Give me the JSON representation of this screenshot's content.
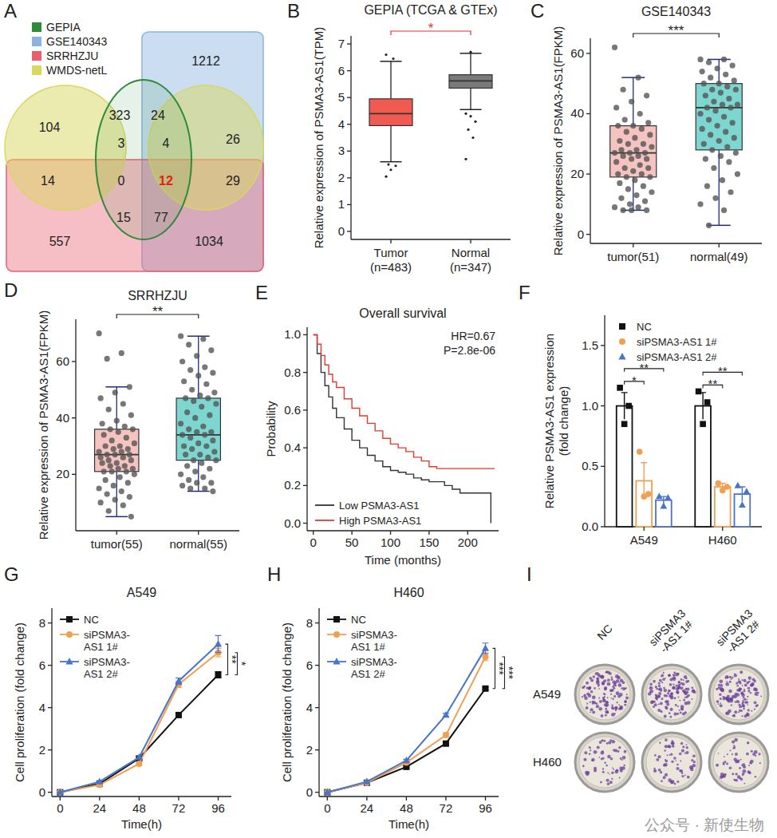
{
  "chart_data": [
    {
      "type": "box",
      "panel": "B",
      "title": "GEPIA (TCGA & GTEx)",
      "ylabel": "Relative expression of PSMA3-AS1(TPM)",
      "categories": [
        "Tumor (n=483)",
        "Normal (n=347)"
      ],
      "colors": [
        "#f15a50",
        "#7a7a7a"
      ],
      "boxes": [
        {
          "min": 2.6,
          "q1": 3.95,
          "median": 4.4,
          "q3": 4.95,
          "max": 6.35
        },
        {
          "min": 4.55,
          "q1": 5.35,
          "median": 5.62,
          "q3": 5.85,
          "max": 6.65
        }
      ],
      "outliers": [
        [
          2.05,
          2.3,
          2.45,
          2.5,
          6.45,
          6.6
        ],
        [
          4.4,
          4.3,
          4.1,
          3.8,
          3.5,
          2.7,
          6.7
        ]
      ],
      "ylim": [
        -0.3,
        7.3
      ],
      "yticks": [
        0,
        1,
        2,
        3,
        4,
        5,
        6,
        7
      ],
      "significance": {
        "text": "*",
        "color": "#e8302a"
      }
    },
    {
      "type": "box",
      "panel": "C",
      "title": "GSE140343",
      "ylabel": "Relative expression of PSMA3-AS1(FPKM)",
      "categories": [
        "tumor(51)",
        "normal(49)"
      ],
      "colors": [
        "#f6c4c0",
        "#7dd6d0"
      ],
      "boxes": [
        {
          "min": 8,
          "q1": 19,
          "median": 27,
          "q3": 36,
          "max": 52
        },
        {
          "min": 3,
          "q1": 28,
          "median": 42,
          "q3": 50,
          "max": 58
        }
      ],
      "points": [
        [
          62,
          52,
          48,
          46,
          44,
          42,
          40,
          38,
          37,
          36,
          36,
          35,
          34,
          33,
          32,
          31,
          30,
          30,
          29,
          28,
          28,
          27,
          27,
          27,
          26,
          26,
          25,
          25,
          24,
          23,
          22,
          22,
          21,
          20,
          20,
          19,
          19,
          18,
          17,
          16,
          15,
          14,
          13,
          12,
          11,
          10,
          9,
          9,
          8,
          8,
          8
        ],
        [
          58,
          58,
          57,
          56,
          55,
          54,
          53,
          52,
          51,
          50,
          50,
          49,
          48,
          48,
          47,
          46,
          45,
          44,
          43,
          43,
          42,
          42,
          41,
          40,
          39,
          38,
          37,
          36,
          35,
          34,
          33,
          32,
          31,
          30,
          29,
          28,
          27,
          26,
          25,
          24,
          22,
          20,
          18,
          16,
          14,
          12,
          10,
          8,
          3
        ]
      ],
      "ylim": [
        -3,
        65
      ],
      "yticks": [
        0,
        20,
        40,
        60
      ],
      "significance": {
        "text": "***",
        "color": "#222222"
      }
    },
    {
      "type": "box",
      "panel": "D",
      "title": "SRRHZJU",
      "ylabel": "Relative expression of PSMA3-AS1(FPKM)",
      "categories": [
        "tumor(55)",
        "normal(55)"
      ],
      "colors": [
        "#f6c4c0",
        "#7dd6d0"
      ],
      "boxes": [
        {
          "min": 5,
          "q1": 21,
          "median": 27,
          "q3": 36,
          "max": 51
        },
        {
          "min": 14,
          "q1": 25,
          "median": 34,
          "q3": 47,
          "max": 69
        }
      ],
      "points": [
        [
          70,
          63,
          61,
          51,
          49,
          47,
          45,
          43,
          41,
          39,
          38,
          37,
          36,
          36,
          35,
          34,
          33,
          32,
          31,
          30,
          30,
          29,
          29,
          28,
          28,
          27,
          27,
          27,
          26,
          26,
          25,
          25,
          24,
          24,
          23,
          23,
          22,
          22,
          21,
          21,
          21,
          20,
          19,
          18,
          17,
          16,
          15,
          14,
          13,
          12,
          11,
          10,
          9,
          7,
          5
        ],
        [
          69,
          68,
          66,
          64,
          62,
          60,
          58,
          57,
          56,
          55,
          53,
          52,
          50,
          49,
          48,
          47,
          47,
          46,
          45,
          44,
          42,
          41,
          40,
          38,
          37,
          36,
          35,
          35,
          34,
          34,
          33,
          32,
          31,
          30,
          30,
          29,
          28,
          27,
          27,
          26,
          25,
          25,
          24,
          23,
          22,
          21,
          20,
          19,
          18,
          17,
          17,
          16,
          15,
          15,
          14
        ]
      ],
      "ylim": [
        0,
        75
      ],
      "yticks": [
        20,
        40,
        60
      ],
      "significance": {
        "text": "**",
        "color": "#222222"
      }
    },
    {
      "type": "line",
      "panel": "E",
      "title": "Overall survival",
      "xlabel": "Time (months)",
      "ylabel": "Probability",
      "line_style": "step",
      "legend": "lower left",
      "xlim": [
        -8,
        240
      ],
      "ylim": [
        -0.04,
        1.04
      ],
      "xticks": [
        0,
        50,
        100,
        150,
        200
      ],
      "yticks": [
        {
          "value": 0,
          "label": "0.0"
        },
        {
          "value": 0.2,
          "label": "0.2"
        },
        {
          "value": 0.4,
          "label": "0.4"
        },
        {
          "value": 0.6,
          "label": "0.6"
        },
        {
          "value": 0.8,
          "label": "0.8"
        },
        {
          "value": 1,
          "label": "1.0"
        }
      ],
      "annotations": [
        "HR=0.67",
        "P=2.8e-06"
      ],
      "series": [
        {
          "name": "Low PSMA3-AS1",
          "color": "#333333",
          "x": [
            0,
            5,
            10,
            15,
            20,
            25,
            30,
            40,
            50,
            60,
            70,
            80,
            90,
            100,
            110,
            120,
            130,
            140,
            150,
            160,
            170,
            180,
            190,
            200,
            210,
            220,
            230
          ],
          "values": [
            1.0,
            0.9,
            0.8,
            0.73,
            0.67,
            0.61,
            0.56,
            0.5,
            0.44,
            0.4,
            0.36,
            0.33,
            0.3,
            0.28,
            0.27,
            0.26,
            0.24,
            0.23,
            0.22,
            0.22,
            0.2,
            0.18,
            0.16,
            0.16,
            0.16,
            0.16,
            0.0
          ]
        },
        {
          "name": "High PSMA3-AS1",
          "color": "#e8392f",
          "x": [
            0,
            5,
            10,
            15,
            20,
            25,
            30,
            40,
            50,
            60,
            70,
            80,
            90,
            100,
            110,
            120,
            130,
            140,
            150,
            160,
            170,
            180,
            190,
            200,
            210,
            220,
            235
          ],
          "values": [
            1.0,
            0.95,
            0.89,
            0.84,
            0.79,
            0.75,
            0.72,
            0.66,
            0.61,
            0.57,
            0.53,
            0.49,
            0.45,
            0.42,
            0.4,
            0.38,
            0.35,
            0.33,
            0.3,
            0.29,
            0.29,
            0.29,
            0.29,
            0.29,
            0.29,
            0.29,
            0.29
          ]
        }
      ]
    },
    {
      "type": "bar",
      "panel": "F",
      "ylabel": "Relative PSMA3-AS1 expression (fold change)",
      "categories": [
        "A549",
        "H460"
      ],
      "legend": "upper left",
      "ylim": [
        0,
        1.75
      ],
      "yticks": [
        {
          "value": 0,
          "label": "0.0"
        },
        {
          "value": 0.5,
          "label": "0.5"
        },
        {
          "value": 1,
          "label": "1.0"
        },
        {
          "value": 1.5,
          "label": "1.5"
        }
      ],
      "significance": [
        [
          "*",
          "**"
        ],
        [
          "**",
          "**"
        ]
      ],
      "series": [
        {
          "name": "NC",
          "color": "#111111",
          "marker": "square",
          "values": [
            1.0,
            1.0
          ],
          "errors": [
            0.11,
            0.11
          ],
          "points": [
            [
              1.15,
              0.85,
              1.0
            ],
            [
              1.12,
              0.85,
              1.03
            ]
          ]
        },
        {
          "name": "siPSMA3-AS1 1#",
          "color": "#f0a052",
          "marker": "circle",
          "values": [
            0.38,
            0.33
          ],
          "errors": [
            0.15,
            0.03
          ],
          "points": [
            [
              0.62,
              0.25,
              0.27
            ],
            [
              0.36,
              0.3,
              0.33
            ]
          ]
        },
        {
          "name": "siPSMA3-AS1 2#",
          "color": "#4a74c8",
          "marker": "triangle",
          "values": [
            0.22,
            0.27
          ],
          "errors": [
            0.03,
            0.06
          ],
          "points": [
            [
              0.25,
              0.17,
              0.24
            ],
            [
              0.34,
              0.18,
              0.29
            ]
          ]
        }
      ]
    },
    {
      "type": "line",
      "panel": "G",
      "title": "A549",
      "xlabel": "Time(h)",
      "ylabel": "Cell proliferation (fold change)",
      "legend": "upper left",
      "x": [
        0,
        24,
        48,
        72,
        96
      ],
      "xlim": [
        -5,
        104
      ],
      "ylim": [
        -0.2,
        8.7
      ],
      "xticks": [
        0,
        24,
        48,
        72,
        96
      ],
      "yticks": [
        0,
        2,
        4,
        6,
        8
      ],
      "significance": [
        "**",
        "*"
      ],
      "series": [
        {
          "name": "NC",
          "color": "#111111",
          "marker": "square",
          "values": [
            0,
            0.4,
            1.6,
            3.65,
            5.55
          ],
          "errors": [
            0,
            0.05,
            0.08,
            0.1,
            0.15
          ]
        },
        {
          "name": "siPSMA3-AS1 1#",
          "color": "#f0a052",
          "marker": "circle",
          "values": [
            0,
            0.35,
            1.35,
            5.1,
            6.6
          ],
          "errors": [
            0,
            0.05,
            0.08,
            0.15,
            0.2
          ]
        },
        {
          "name": "siPSMA3-AS1 2#",
          "color": "#4a74c8",
          "marker": "triangle",
          "values": [
            0,
            0.5,
            1.65,
            5.25,
            7.0
          ],
          "errors": [
            0,
            0.05,
            0.08,
            0.15,
            0.4
          ]
        }
      ]
    },
    {
      "type": "line",
      "panel": "H",
      "title": "H460",
      "xlabel": "Time(h)",
      "ylabel": "Cell proliferation (fold change)",
      "legend": "upper left",
      "x": [
        0,
        24,
        48,
        72,
        96
      ],
      "xlim": [
        -5,
        104
      ],
      "ylim": [
        -0.2,
        8.7
      ],
      "xticks": [
        0,
        24,
        48,
        72,
        96
      ],
      "yticks": [
        0,
        2,
        4,
        6,
        8
      ],
      "significance": [
        "***",
        "***"
      ],
      "series": [
        {
          "name": "NC",
          "color": "#111111",
          "marker": "square",
          "values": [
            0,
            0.45,
            1.2,
            2.3,
            4.9
          ],
          "errors": [
            0,
            0.04,
            0.06,
            0.08,
            0.06
          ]
        },
        {
          "name": "siPSMA3-AS1 1#",
          "color": "#f0a052",
          "marker": "circle",
          "values": [
            0,
            0.45,
            1.4,
            2.7,
            6.4
          ],
          "errors": [
            0,
            0.04,
            0.06,
            0.1,
            0.18
          ]
        },
        {
          "name": "siPSMA3-AS1 2#",
          "color": "#4a74c8",
          "marker": "triangle",
          "values": [
            0,
            0.5,
            1.5,
            3.65,
            6.8
          ],
          "errors": [
            0,
            0.04,
            0.06,
            0.08,
            0.25
          ]
        }
      ]
    }
  ],
  "venn": {
    "panel": "A",
    "sets": [
      {
        "name": "GEPIA",
        "color": "#2e8b3a"
      },
      {
        "name": "GSE140343",
        "color": "#8ab4e0"
      },
      {
        "name": "SRRHZJU",
        "color": "#e8606e"
      },
      {
        "name": "WMDS-netL",
        "color": "#d8d860"
      }
    ],
    "counts": [
      104,
      323,
      24,
      1212,
      3,
      4,
      26,
      14,
      0,
      12,
      29,
      15,
      77,
      557,
      1034
    ],
    "colors": [
      "#222222",
      "#222222",
      "#222222",
      "#222222",
      "#222222",
      "#222222",
      "#222222",
      "#222222",
      "#222222",
      "#e0201a",
      "#222222",
      "#222222",
      "#222222",
      "#222222",
      "#222222"
    ]
  },
  "plates": {
    "panel": "I",
    "columns": [
      "NC",
      "siPSMA3-AS1 1#",
      "siPSMA3-AS1 2#"
    ],
    "rows": [
      "A549",
      "H460"
    ],
    "color": "#6a3d9a"
  },
  "watermark": "公众号 · 新使生物"
}
